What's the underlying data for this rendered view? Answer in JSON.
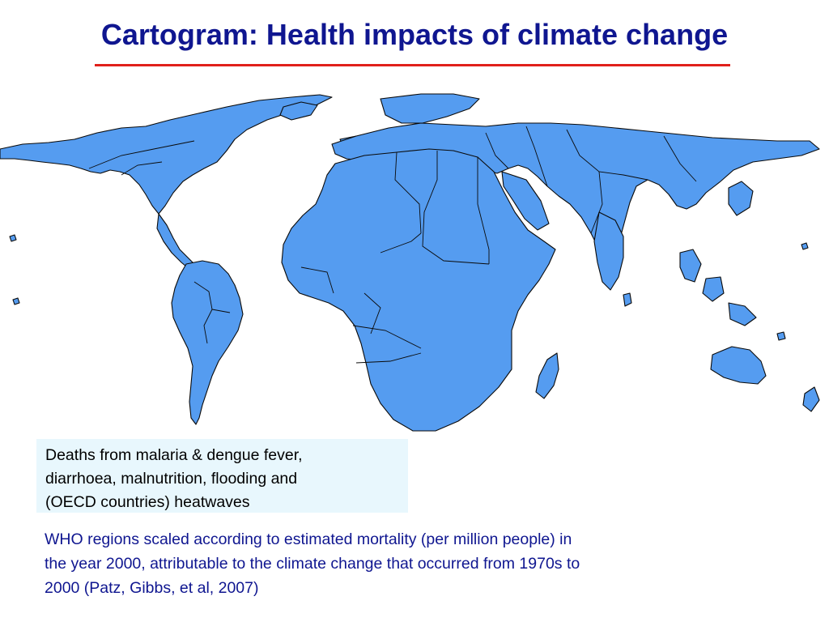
{
  "slide": {
    "title": "Cartogram: Health impacts of climate change"
  },
  "legend": {
    "lines": [
      "Deaths from malaria & dengue fever,",
      "diarrhoea, malnutrition, flooding and",
      "(OECD countries) heatwaves"
    ]
  },
  "caption": {
    "lines": [
      "WHO regions scaled according to estimated mortality (per million people) in",
      "the year 2000, attributable to the climate change that occurred from 1970s to",
      "2000 (Patz, Gibbs, et al, 2007)"
    ]
  },
  "colors": {
    "title": "#0f1690",
    "rule": "#e0201b",
    "land": "#559cf0",
    "legend_bg": "#e8f7fd"
  }
}
